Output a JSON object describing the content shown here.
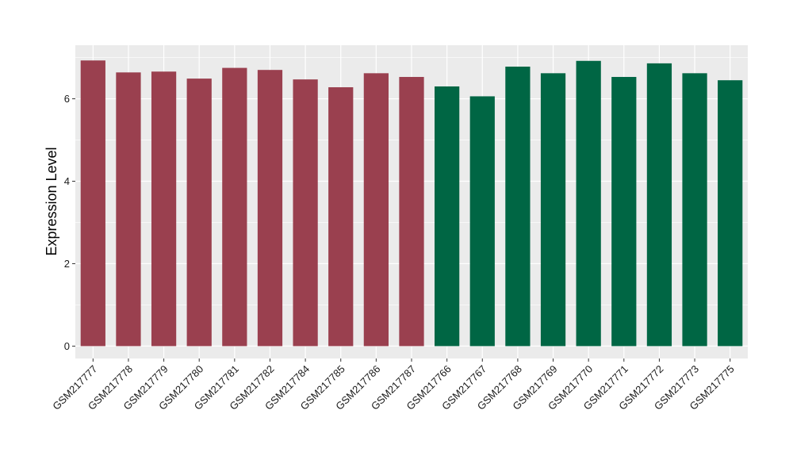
{
  "chart_data": {
    "type": "bar",
    "title": "",
    "xlabel": "",
    "ylabel": "Expression Level",
    "ylim": [
      -0.3,
      7.3
    ],
    "yticks": [
      0,
      2,
      4,
      6
    ],
    "grid": true,
    "legend": "none",
    "categories": [
      "GSM217777",
      "GSM217778",
      "GSM217779",
      "GSM217780",
      "GSM217781",
      "GSM217782",
      "GSM217784",
      "GSM217785",
      "GSM217786",
      "GSM217787",
      "GSM217766",
      "GSM217767",
      "GSM217768",
      "GSM217769",
      "GSM217770",
      "GSM217771",
      "GSM217772",
      "GSM217773",
      "GSM217775"
    ],
    "values": [
      6.93,
      6.64,
      6.66,
      6.49,
      6.75,
      6.7,
      6.47,
      6.28,
      6.62,
      6.53,
      6.3,
      6.06,
      6.78,
      6.62,
      6.92,
      6.53,
      6.86,
      6.62,
      6.45
    ],
    "group_colors": [
      "#9a404f",
      "#9a404f",
      "#9a404f",
      "#9a404f",
      "#9a404f",
      "#9a404f",
      "#9a404f",
      "#9a404f",
      "#9a404f",
      "#9a404f",
      "#006644",
      "#006644",
      "#006644",
      "#006644",
      "#006644",
      "#006644",
      "#006644",
      "#006644",
      "#006644"
    ],
    "panel_color": "#ebebeb",
    "grid_color": "#ffffff"
  }
}
